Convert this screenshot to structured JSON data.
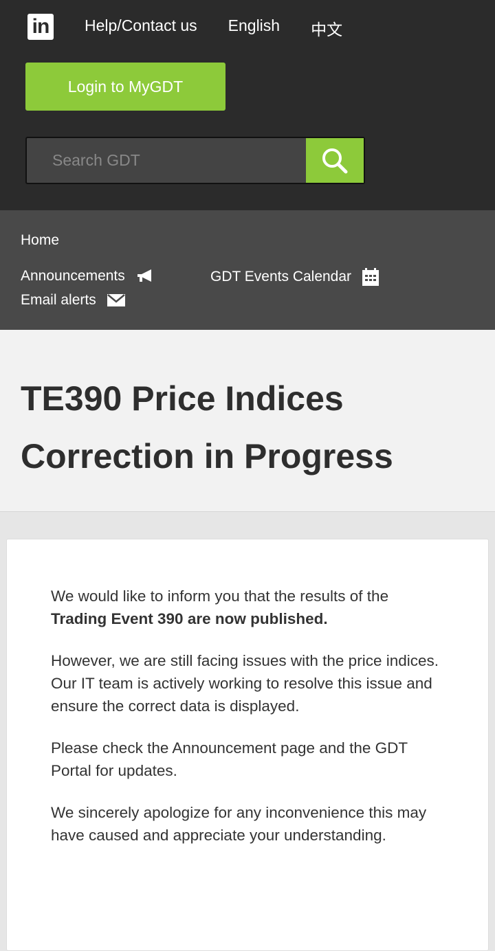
{
  "header": {
    "logo_text": "in",
    "links": [
      "Help/Contact us",
      "English",
      "中文"
    ],
    "login_label": "Login to MyGDT",
    "search_placeholder": "Search GDT"
  },
  "nav": {
    "home": "Home",
    "announcements": "Announcements",
    "calendar": "GDT Events Calendar",
    "email_alerts": "Email alerts"
  },
  "page": {
    "title_line1": "TE390 Price Indices",
    "title_line2": "Correction in Progress"
  },
  "content": {
    "p1_normal": "We would like to inform you that the results of the ",
    "p1_bold": "Trading Event 390 are now published.",
    "p2": "However, we are still facing issues with the price indices. Our IT team is actively working to resolve this issue and ensure the correct data is displayed.",
    "p3": "Please check the Announcement page and the GDT Portal for updates.",
    "p4": "We sincerely apologize for any inconvenience this may have caused and appreciate your understanding."
  },
  "colors": {
    "accent": "#8dca3a",
    "header_bg": "#2b2b2b",
    "nav_bg": "#494949"
  }
}
